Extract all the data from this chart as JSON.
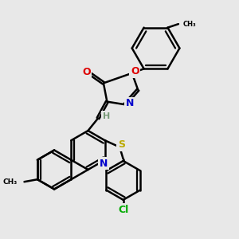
{
  "bg_color": "#e8e8e8",
  "bond_color": "#000000",
  "atom_colors": {
    "N": "#0000cc",
    "O": "#dd0000",
    "S": "#bbaa00",
    "Cl": "#00aa00",
    "H": "#777777",
    "C": "#000000"
  },
  "line_width": 1.8,
  "dbo": 0.055
}
